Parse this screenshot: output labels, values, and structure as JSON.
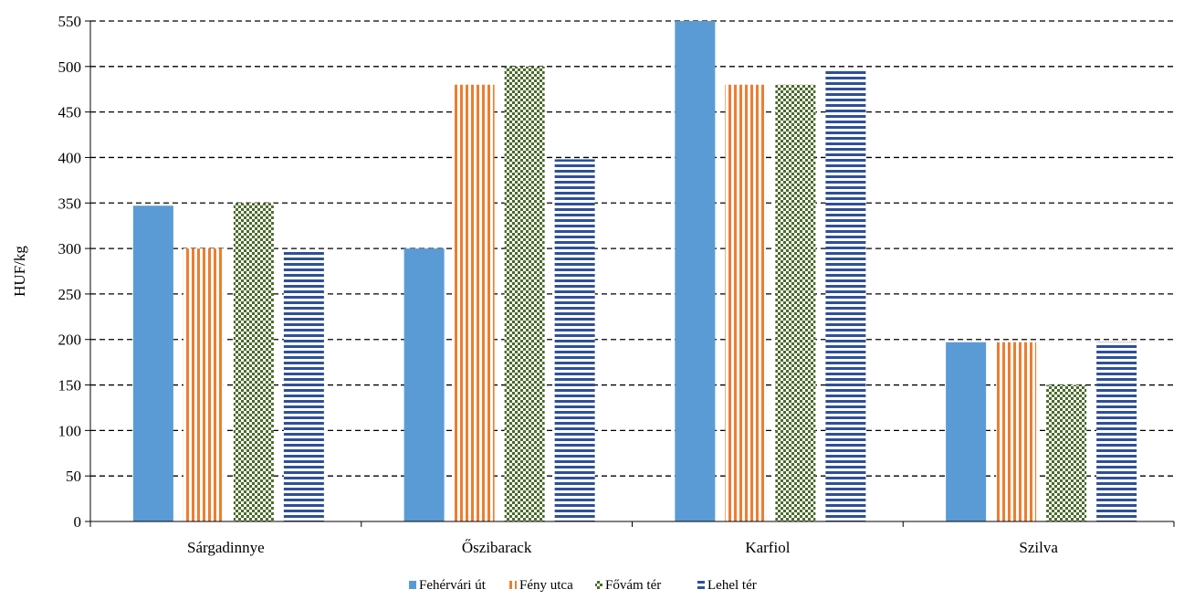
{
  "chart_data": {
    "type": "bar",
    "title": "",
    "xlabel": "",
    "ylabel": "HUF/kg",
    "ylim": [
      0,
      550
    ],
    "yticks": [
      0,
      50,
      100,
      150,
      200,
      250,
      300,
      350,
      400,
      450,
      500,
      550
    ],
    "grid": true,
    "legend_position": "bottom",
    "categories": [
      "Sárgadinnye",
      "Őszibarack",
      "Karfiol",
      "Szilva"
    ],
    "series": [
      {
        "name": "Fehérvári út",
        "values": [
          347,
          300,
          550,
          197
        ],
        "color": "#5b9bd5",
        "pattern": "solid"
      },
      {
        "name": "Fény utca",
        "values": [
          300,
          480,
          480,
          197
        ],
        "color": "#ed7d31",
        "pattern": "vertical-stripes"
      },
      {
        "name": "Fővám tér",
        "values": [
          350,
          500,
          480,
          150
        ],
        "color": "#4a6b2a",
        "pattern": "checkerboard"
      },
      {
        "name": "Lehel tér",
        "values": [
          297,
          398,
          497,
          197
        ],
        "color": "#2f4f9a",
        "pattern": "horizontal-stripes"
      }
    ]
  }
}
